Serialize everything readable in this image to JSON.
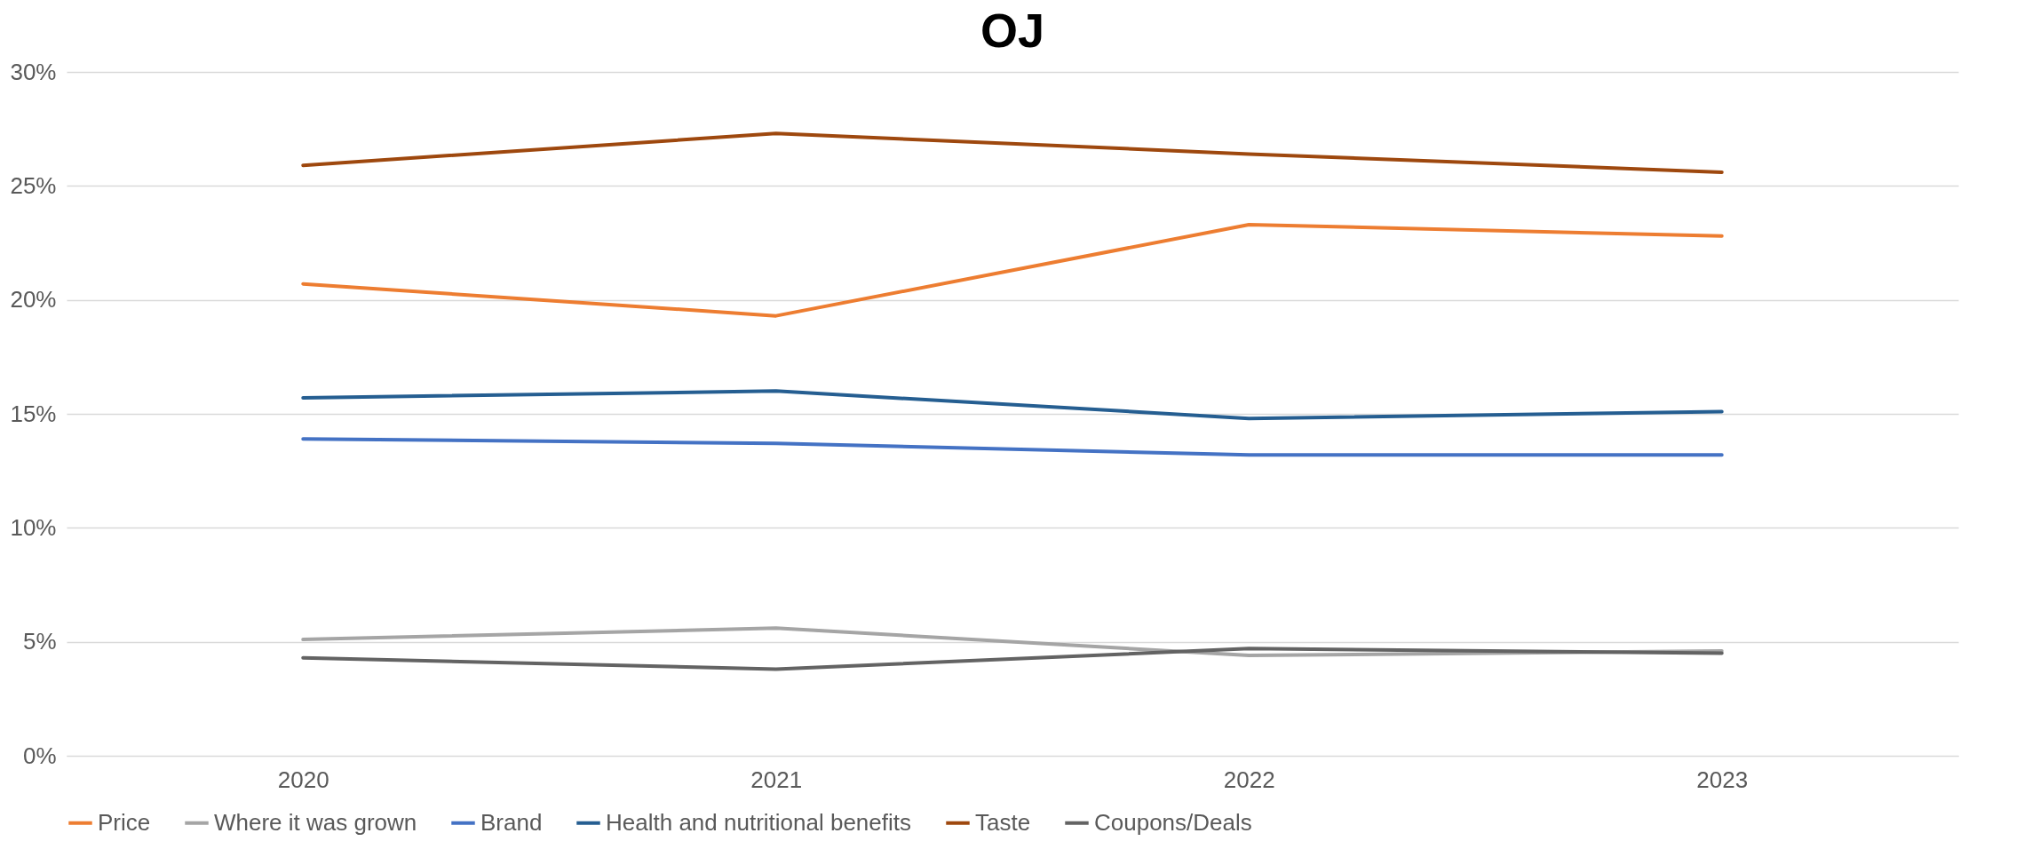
{
  "chart_data": {
    "type": "line",
    "title": "OJ",
    "categories": [
      "2020",
      "2021",
      "2022",
      "2023"
    ],
    "series": [
      {
        "name": "Price",
        "color": "#ed7d31",
        "values": [
          20.7,
          19.3,
          23.3,
          22.8
        ]
      },
      {
        "name": "Where it was grown",
        "color": "#a5a5a5",
        "values": [
          5.1,
          5.6,
          4.4,
          4.6
        ]
      },
      {
        "name": "Brand",
        "color": "#4472c4",
        "values": [
          13.9,
          13.7,
          13.2,
          13.2
        ]
      },
      {
        "name": "Health and nutritional benefits",
        "color": "#255e91",
        "values": [
          15.7,
          16.0,
          14.8,
          15.1
        ]
      },
      {
        "name": "Taste",
        "color": "#9e480e",
        "values": [
          25.9,
          27.3,
          26.4,
          25.6
        ]
      },
      {
        "name": "Coupons/Deals",
        "color": "#636363",
        "values": [
          4.3,
          3.8,
          4.7,
          4.5
        ]
      }
    ],
    "ylim": [
      0,
      30
    ],
    "yticks": [
      {
        "value": 0,
        "label": "0%"
      },
      {
        "value": 5,
        "label": "5%"
      },
      {
        "value": 10,
        "label": "10%"
      },
      {
        "value": 15,
        "label": "15%"
      },
      {
        "value": 20,
        "label": "20%"
      },
      {
        "value": 25,
        "label": "25%"
      },
      {
        "value": 30,
        "label": "30%"
      }
    ],
    "grid": "y",
    "legend": "bottom",
    "marker": "none",
    "line_style": "solid"
  }
}
